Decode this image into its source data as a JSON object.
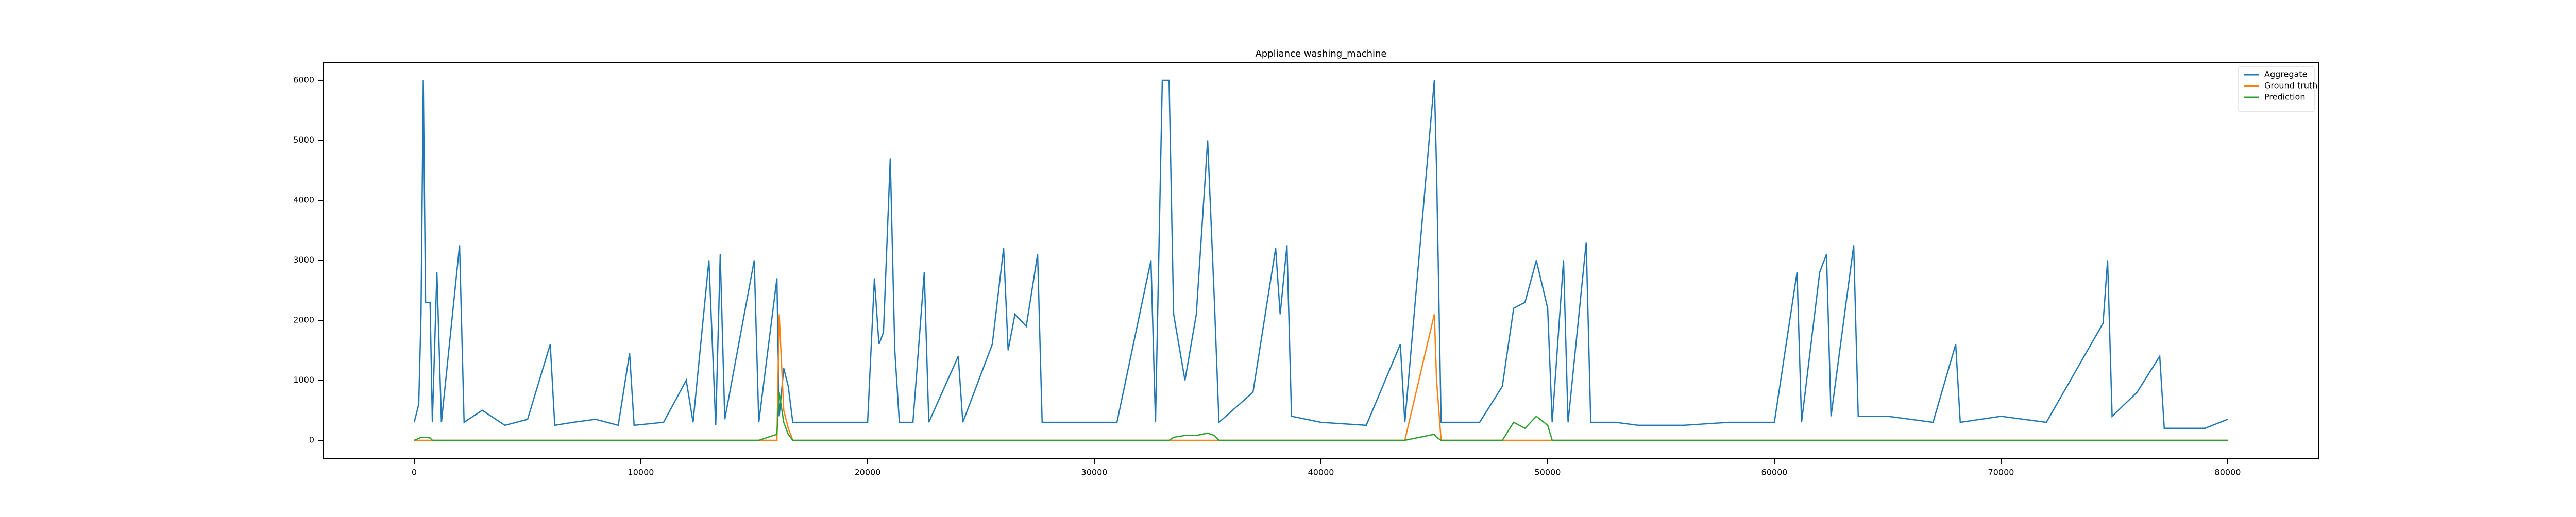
{
  "chart_data": {
    "type": "line",
    "title": "Appliance washing_machine",
    "x": [
      0,
      200,
      300,
      400,
      500,
      700,
      800,
      1000,
      1200,
      2000,
      2200,
      3000,
      4000,
      5000,
      6000,
      6200,
      7000,
      8000,
      9000,
      9500,
      9700,
      11000,
      12000,
      12300,
      13000,
      13300,
      13500,
      13700,
      15000,
      15200,
      16000,
      16100,
      16300,
      16500,
      16700,
      18000,
      20000,
      20300,
      20500,
      20700,
      21000,
      21200,
      21400,
      22000,
      22500,
      22700,
      24000,
      24200,
      25500,
      26000,
      26200,
      26500,
      27000,
      27500,
      27700,
      29000,
      31000,
      32500,
      32700,
      33000,
      33300,
      33500,
      34000,
      34500,
      35000,
      35300,
      35500,
      37000,
      38000,
      38200,
      38500,
      38700,
      40000,
      42000,
      43500,
      43700,
      45000,
      45100,
      45300,
      47000,
      48000,
      48500,
      49000,
      49500,
      50000,
      50200,
      50700,
      50900,
      51700,
      51900,
      53000,
      54000,
      56000,
      58000,
      60000,
      61000,
      61200,
      62000,
      62300,
      62500,
      63500,
      63700,
      65000,
      67000,
      68000,
      68200,
      70000,
      72000,
      74500,
      74700,
      74900,
      76000,
      77000,
      77200,
      79000,
      80000
    ],
    "series": [
      {
        "name": "Aggregate",
        "color": "#1f77b4",
        "values": [
          300,
          600,
          2100,
          6000,
          2300,
          2300,
          300,
          2800,
          300,
          3250,
          300,
          500,
          250,
          350,
          1600,
          250,
          300,
          350,
          250,
          1450,
          250,
          300,
          1000,
          300,
          3000,
          250,
          3100,
          350,
          3000,
          300,
          2700,
          400,
          1200,
          900,
          300,
          300,
          300,
          2700,
          1600,
          1800,
          4700,
          1500,
          300,
          300,
          2800,
          300,
          1400,
          300,
          1600,
          3200,
          1500,
          2100,
          1900,
          3100,
          300,
          300,
          300,
          3000,
          300,
          6000,
          6000,
          2100,
          1000,
          2100,
          5000,
          2300,
          300,
          800,
          3200,
          2100,
          3250,
          400,
          300,
          250,
          1600,
          300,
          6000,
          4500,
          300,
          300,
          900,
          2200,
          2300,
          3000,
          2200,
          300,
          3000,
          300,
          3300,
          300,
          300,
          250,
          250,
          300,
          300,
          2800,
          300,
          2800,
          3100,
          400,
          3250,
          400,
          400,
          300,
          1600,
          300,
          400,
          300,
          1950,
          3000,
          400,
          800,
          1400,
          200,
          200,
          350
        ]
      },
      {
        "name": "Ground truth",
        "color": "#ff7f0e",
        "values": [
          0,
          0,
          0,
          0,
          0,
          0,
          0,
          0,
          0,
          0,
          0,
          0,
          0,
          0,
          0,
          0,
          0,
          0,
          0,
          0,
          0,
          0,
          0,
          0,
          0,
          0,
          0,
          0,
          0,
          0,
          0,
          2100,
          500,
          200,
          0,
          0,
          0,
          0,
          0,
          0,
          0,
          0,
          0,
          0,
          0,
          0,
          0,
          0,
          0,
          0,
          0,
          0,
          0,
          0,
          0,
          0,
          0,
          0,
          0,
          0,
          0,
          0,
          0,
          0,
          0,
          0,
          0,
          0,
          0,
          0,
          0,
          0,
          0,
          0,
          0,
          0,
          2100,
          1000,
          0,
          0,
          0,
          0,
          0,
          0,
          0,
          0,
          0,
          0,
          0,
          0,
          0,
          0,
          0,
          0,
          0,
          0,
          0,
          0,
          0,
          0,
          0,
          0,
          0,
          0,
          0,
          0,
          0,
          0,
          0,
          0,
          0,
          0,
          0,
          0,
          0,
          0
        ]
      },
      {
        "name": "Prediction",
        "color": "#2ca02c",
        "values": [
          0,
          30,
          50,
          50,
          50,
          40,
          0,
          0,
          0,
          0,
          0,
          0,
          0,
          0,
          0,
          0,
          0,
          0,
          0,
          0,
          0,
          0,
          0,
          0,
          0,
          0,
          0,
          0,
          0,
          0,
          100,
          800,
          300,
          100,
          0,
          0,
          0,
          0,
          0,
          0,
          0,
          0,
          0,
          0,
          0,
          0,
          0,
          0,
          0,
          0,
          0,
          0,
          0,
          0,
          0,
          0,
          0,
          0,
          0,
          0,
          0,
          50,
          80,
          80,
          120,
          80,
          0,
          0,
          0,
          0,
          0,
          0,
          0,
          0,
          0,
          0,
          100,
          50,
          0,
          0,
          0,
          300,
          200,
          400,
          250,
          0,
          0,
          0,
          0,
          0,
          0,
          0,
          0,
          0,
          0,
          0,
          0,
          0,
          0,
          0,
          0,
          0,
          0,
          0,
          0,
          0,
          0,
          0,
          0,
          0,
          0,
          0,
          0,
          0,
          0,
          0
        ]
      }
    ],
    "xlim": [
      -4000,
      84000
    ],
    "xticks": [
      0,
      10000,
      20000,
      30000,
      40000,
      50000,
      60000,
      70000,
      80000
    ],
    "ylim": [
      -300,
      6300
    ],
    "yticks": [
      0,
      1000,
      2000,
      3000,
      4000,
      5000,
      6000
    ],
    "legend": "upper right"
  }
}
